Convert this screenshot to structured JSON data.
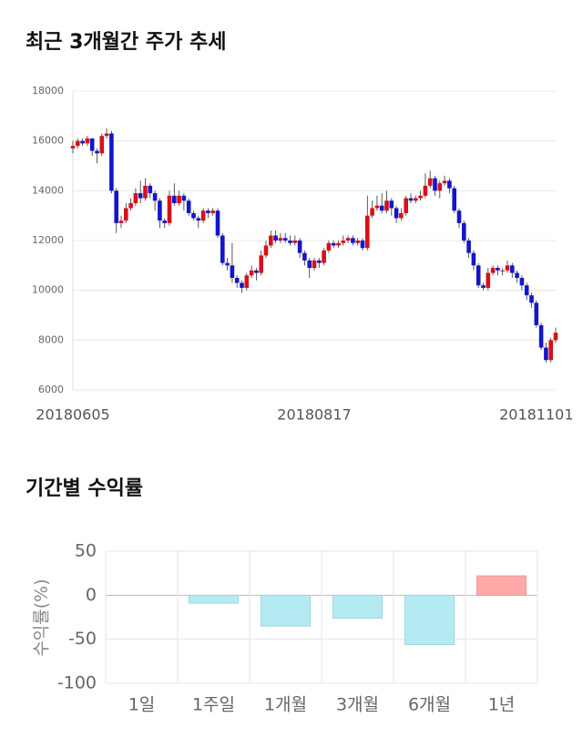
{
  "chart_data": [
    {
      "type": "candlestick",
      "title": "최근 3개월간 주가 추세",
      "categories": [
        "20180605",
        null,
        null,
        null,
        null,
        null,
        null,
        null,
        null,
        null,
        null,
        null,
        null,
        null,
        null,
        null,
        null,
        null,
        null,
        null,
        null,
        null,
        null,
        null,
        null,
        null,
        null,
        null,
        null,
        null,
        null,
        null,
        null,
        null,
        null,
        null,
        null,
        null,
        null,
        null,
        null,
        null,
        null,
        null,
        null,
        null,
        null,
        null,
        null,
        null,
        "20180817",
        null,
        null,
        null,
        null,
        null,
        null,
        null,
        null,
        null,
        null,
        null,
        null,
        null,
        null,
        null,
        null,
        null,
        null,
        null,
        null,
        null,
        null,
        null,
        null,
        null,
        null,
        null,
        null,
        null,
        null,
        null,
        null,
        null,
        null,
        null,
        null,
        null,
        null,
        null,
        null,
        null,
        null,
        null,
        null,
        null,
        "20181101",
        null,
        null,
        null,
        null
      ],
      "open": [
        15700,
        15800,
        16000,
        15900,
        16100,
        15600,
        15500,
        16200,
        16300,
        14000,
        12700,
        12800,
        13300,
        13500,
        13900,
        13700,
        14200,
        13900,
        13600,
        12800,
        12700,
        13800,
        13500,
        13800,
        13600,
        13100,
        12900,
        12800,
        13200,
        13100,
        13200,
        12200,
        11100,
        11000,
        10500,
        10300,
        10100,
        10600,
        10800,
        10700,
        11400,
        11800,
        12200,
        12000,
        12100,
        12000,
        11900,
        12000,
        11500,
        11200,
        10900,
        11200,
        11100,
        11600,
        11900,
        11800,
        11900,
        12000,
        12100,
        11900,
        12000,
        11700,
        13000,
        13300,
        13400,
        13200,
        13600,
        13300,
        12900,
        13100,
        13700,
        13600,
        13700,
        13800,
        14200,
        14500,
        14000,
        14300,
        14400,
        14100,
        13200,
        12700,
        12000,
        11500,
        11000,
        10200,
        10100,
        10700,
        10900,
        10800,
        10800,
        11000,
        10700,
        10500,
        10200,
        9800,
        9500,
        8600,
        7700,
        7200,
        8000
      ],
      "high": [
        16000,
        16100,
        16100,
        16200,
        16100,
        15700,
        16300,
        16500,
        16400,
        14100,
        13000,
        13500,
        13700,
        14100,
        14400,
        14500,
        14300,
        14000,
        13700,
        12900,
        14000,
        14300,
        14000,
        13900,
        13700,
        13200,
        13000,
        13300,
        13300,
        13300,
        13300,
        12300,
        11300,
        11900,
        10600,
        10400,
        10700,
        11000,
        10900,
        11600,
        12000,
        12400,
        12400,
        12300,
        12300,
        12200,
        12200,
        12100,
        11600,
        11300,
        11300,
        11300,
        11700,
        12000,
        12000,
        12000,
        12200,
        12200,
        12200,
        12100,
        12100,
        13800,
        13600,
        13800,
        13900,
        14000,
        13700,
        13400,
        13300,
        13800,
        13900,
        13800,
        14000,
        14700,
        14800,
        14600,
        14400,
        14600,
        14500,
        14200,
        13300,
        12800,
        12100,
        11600,
        11100,
        10300,
        10900,
        11000,
        11000,
        10900,
        11200,
        11100,
        10800,
        10600,
        10300,
        9900,
        9600,
        8700,
        7900,
        8100,
        8500
      ],
      "low": [
        15500,
        15700,
        15800,
        15800,
        15400,
        15100,
        15400,
        16100,
        13900,
        12300,
        12500,
        12700,
        13200,
        13400,
        13500,
        13600,
        13700,
        13200,
        12500,
        12500,
        12600,
        13400,
        13400,
        13200,
        13000,
        12800,
        12500,
        12700,
        12900,
        13000,
        12100,
        11000,
        10800,
        10300,
        10100,
        9900,
        10000,
        10500,
        10400,
        10600,
        11300,
        11700,
        11900,
        11900,
        11900,
        11800,
        11800,
        11300,
        11000,
        10500,
        10800,
        10900,
        11000,
        11500,
        11700,
        11700,
        11800,
        11900,
        11800,
        11800,
        11600,
        11600,
        12900,
        13200,
        13100,
        13100,
        13000,
        12700,
        12800,
        13000,
        13500,
        13500,
        13600,
        13700,
        14100,
        13800,
        13700,
        14200,
        13900,
        13100,
        12500,
        11900,
        11300,
        10800,
        10100,
        10000,
        10000,
        10600,
        10600,
        10600,
        10700,
        10500,
        10300,
        10000,
        9600,
        9300,
        8500,
        7600,
        7100,
        7100,
        7900
      ],
      "close": [
        15800,
        16000,
        15900,
        16100,
        15600,
        15500,
        16200,
        16300,
        14000,
        12700,
        12800,
        13300,
        13500,
        13900,
        13700,
        14200,
        13900,
        13600,
        12800,
        12700,
        13800,
        13500,
        13800,
        13600,
        13100,
        12900,
        12800,
        13200,
        13100,
        13200,
        12200,
        11100,
        11000,
        10500,
        10300,
        10100,
        10600,
        10800,
        10700,
        11400,
        11800,
        12200,
        12000,
        12100,
        12000,
        11900,
        12000,
        11500,
        11200,
        10900,
        11200,
        11100,
        11600,
        11900,
        11800,
        11900,
        12000,
        12100,
        11900,
        12000,
        11700,
        13000,
        13300,
        13400,
        13200,
        13600,
        13300,
        12900,
        13100,
        13700,
        13600,
        13700,
        13800,
        14200,
        14500,
        14000,
        14300,
        14400,
        14100,
        13200,
        12700,
        12000,
        11500,
        11000,
        10200,
        10100,
        10700,
        10900,
        10800,
        10800,
        11000,
        10700,
        10500,
        10200,
        9800,
        9500,
        8600,
        7700,
        7200,
        8000,
        8300
      ],
      "up_color": "#d6111a",
      "down_color": "#1515c9",
      "ylim": [
        6000,
        18000
      ],
      "yticks": [
        6000,
        8000,
        10000,
        12000,
        14000,
        16000,
        18000
      ],
      "grid": true
    },
    {
      "type": "bar",
      "title": "기간별 수익률",
      "y_label": "수익률(%)",
      "categories": [
        "1일",
        "1주일",
        "1개월",
        "3개월",
        "6개월",
        "1년"
      ],
      "values": [
        0,
        -9,
        -35,
        -26,
        -56,
        22
      ],
      "positive_color": "#ffa8a8",
      "negative_color": "#b4ebf2",
      "ylim": [
        -100,
        50
      ],
      "yticks": [
        -100,
        -50,
        0,
        50
      ],
      "grid": true
    }
  ]
}
